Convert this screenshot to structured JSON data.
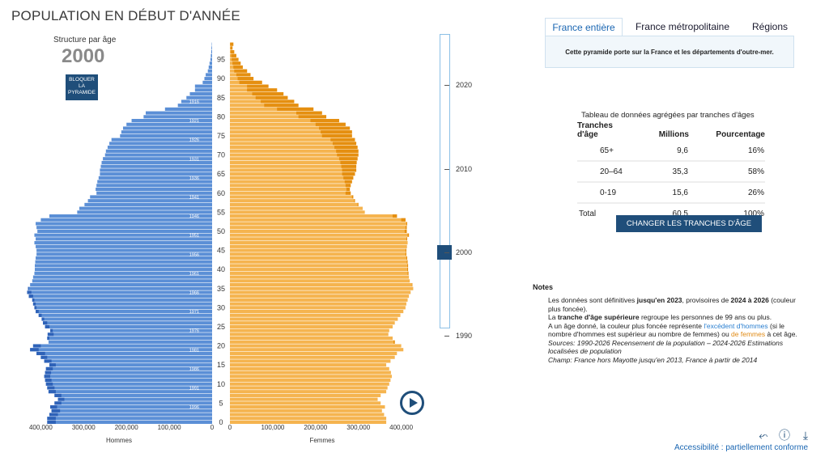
{
  "page_title": "POPULATION EN DÉBUT D'ANNÉE",
  "pyramid_header": {
    "label": "Structure par âge",
    "year": "2000",
    "lock_line1": "BLOQUER",
    "lock_line2": "LA",
    "lock_line3": "PYRAMIDE"
  },
  "tabs": [
    {
      "label": "France entière",
      "active": true
    },
    {
      "label": "France métropolitaine",
      "active": false
    },
    {
      "label": "Régions",
      "active": false
    }
  ],
  "tab_panel_text": "Cette pyramide porte sur la France et les départements d'outre-mer.",
  "aggregate": {
    "caption": "Tableau de données agrégées par tranches d'âges",
    "headers": {
      "col1_a": "Tranches",
      "col1_b": "d'âge",
      "col2": "Millions",
      "col3": "Pourcentage"
    },
    "rows": [
      {
        "range": "65+",
        "millions": "9,6",
        "pct": "16%"
      },
      {
        "range": "20–64",
        "millions": "35,3",
        "pct": "58%"
      },
      {
        "range": "0-19",
        "millions": "15,6",
        "pct": "26%"
      },
      {
        "range": "Total",
        "millions": "60,5",
        "pct": "100%"
      }
    ],
    "change_button": "CHANGER LES TRANCHES D'ÂGE"
  },
  "slider": {
    "labels": [
      "2020",
      "2010",
      "2000",
      "1990"
    ],
    "selected": "2000"
  },
  "notes": {
    "title": "Notes",
    "l1a": "Les données sont définitives ",
    "l1b": "jusqu'en 2023",
    "l1c": ", provisoires de ",
    "l1d": "2024 à 2026",
    "l1e": "(couleur plus foncée).",
    "l2a": "La ",
    "l2b": "tranche d'âge supérieure",
    "l2c": " regroupe les personnes de 99 ans ou plus.",
    "l3a": "A un âge donné, la couleur plus foncée représente ",
    "l3b": "l'excédent d'hommes",
    "l3c": " (si le nombre d'hommes est supérieur au nombre de femmes) ou ",
    "l3d": "de femmes",
    "l3e": " à cet âge.",
    "l4": "Sources: 1990-2026 Recensement de la population – 2024-2026 Estimations localisées de population",
    "l5": "Champ: France hors Mayotte jusqu'en 2013, France à partir de 2014"
  },
  "accessibility": "Accessibilité : partiellement conforme",
  "chart_data": {
    "type": "bar",
    "orientation": "horizontal-pyramid",
    "x_ticks_left": [
      "400,000",
      "300,000",
      "200,000",
      "100,000",
      "0"
    ],
    "x_ticks_right": [
      "0",
      "100,000",
      "200,000",
      "300,000",
      "400,000"
    ],
    "xlabel_left": "Hommes",
    "xlabel_right": "Femmes",
    "xlim": [
      0,
      430000
    ],
    "age_ticks": [
      "0",
      "5",
      "10",
      "15",
      "20",
      "25",
      "30",
      "35",
      "40",
      "45",
      "50",
      "55",
      "60",
      "65",
      "70",
      "75",
      "80",
      "85",
      "90",
      "95"
    ],
    "birth_year_labels": [
      "1996",
      "1991",
      "1986",
      "1981",
      "1976",
      "1971",
      "1966",
      "1961",
      "1956",
      "1951",
      "1946",
      "1941",
      "1936",
      "1931",
      "1926",
      "1921",
      "1916",
      "1911"
    ],
    "ages": [
      0,
      1,
      2,
      3,
      4,
      5,
      6,
      7,
      8,
      9,
      10,
      11,
      12,
      13,
      14,
      15,
      16,
      17,
      18,
      19,
      20,
      21,
      22,
      23,
      24,
      25,
      26,
      27,
      28,
      29,
      30,
      31,
      32,
      33,
      34,
      35,
      36,
      37,
      38,
      39,
      40,
      41,
      42,
      43,
      44,
      45,
      46,
      47,
      48,
      49,
      50,
      51,
      52,
      53,
      54,
      55,
      56,
      57,
      58,
      59,
      60,
      61,
      62,
      63,
      64,
      65,
      66,
      67,
      68,
      69,
      70,
      71,
      72,
      73,
      74,
      75,
      76,
      77,
      78,
      79,
      80,
      81,
      82,
      83,
      84,
      85,
      86,
      87,
      88,
      89,
      90,
      91,
      92,
      93,
      94,
      95,
      96,
      97,
      98,
      99
    ],
    "series": [
      {
        "name": "Hommes",
        "color": "#5b8fd6",
        "dark_color": "#2e62b8",
        "values": [
          385000,
          385000,
          380000,
          375000,
          378000,
          368000,
          360000,
          368000,
          382000,
          385000,
          388000,
          390000,
          392000,
          390000,
          388000,
          380000,
          392000,
          400000,
          410000,
          425000,
          418000,
          382000,
          385000,
          384000,
          378000,
          390000,
          395000,
          398000,
          405000,
          412000,
          415000,
          418000,
          420000,
          428000,
          432000,
          430000,
          425000,
          420000,
          418000,
          415000,
          414000,
          414000,
          413000,
          412000,
          410000,
          410000,
          412000,
          415000,
          412000,
          415000,
          408000,
          410000,
          412000,
          400000,
          380000,
          315000,
          310000,
          298000,
          290000,
          285000,
          270000,
          272000,
          270000,
          268000,
          265000,
          262000,
          262000,
          260000,
          258000,
          255000,
          250000,
          248000,
          244000,
          240000,
          235000,
          215000,
          212000,
          208000,
          200000,
          188000,
          160000,
          155000,
          110000,
          80000,
          72000,
          60000,
          52000,
          40000,
          40000,
          22000,
          18000,
          15000,
          10000,
          8000,
          6000,
          4000,
          3000,
          2000,
          1500,
          800
        ]
      },
      {
        "name": "Femmes",
        "color": "#f5b44f",
        "dark_color": "#e58f10",
        "values": [
          365000,
          365000,
          360000,
          355000,
          362000,
          352000,
          345000,
          352000,
          365000,
          368000,
          372000,
          375000,
          378000,
          376000,
          372000,
          365000,
          375000,
          385000,
          390000,
          405000,
          400000,
          385000,
          380000,
          370000,
          372000,
          380000,
          385000,
          392000,
          398000,
          405000,
          410000,
          412000,
          415000,
          418000,
          422000,
          428000,
          426000,
          420000,
          418000,
          417000,
          416000,
          416000,
          415000,
          414000,
          412000,
          412000,
          413000,
          415000,
          414000,
          418000,
          413000,
          413000,
          414000,
          410000,
          390000,
          315000,
          310000,
          300000,
          292000,
          288000,
          282000,
          280000,
          282000,
          285000,
          288000,
          292000,
          295000,
          295000,
          296000,
          298000,
          300000,
          300000,
          298000,
          295000,
          292000,
          285000,
          285000,
          280000,
          270000,
          255000,
          225000,
          215000,
          195000,
          160000,
          150000,
          135000,
          125000,
          110000,
          90000,
          75000,
          55000,
          48000,
          40000,
          30000,
          25000,
          20000,
          15000,
          10000,
          6000,
          8000
        ]
      }
    ]
  }
}
